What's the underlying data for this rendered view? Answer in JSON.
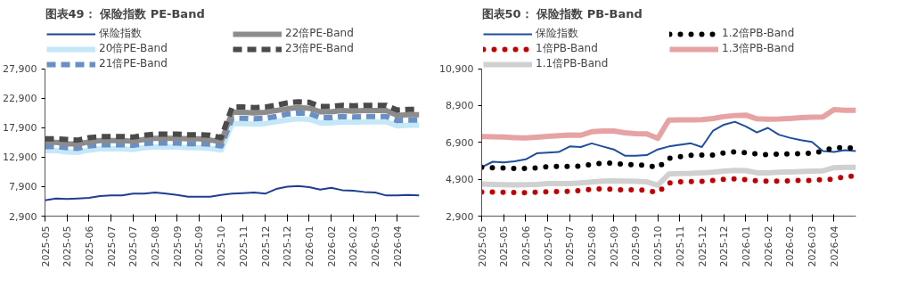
{
  "chart_data": [
    {
      "type": "line",
      "title": "图表49： 保险指数 PE-Band",
      "categories": [
        "2025-05",
        null,
        "2025-05",
        null,
        "2025-06",
        null,
        "2025-07",
        null,
        "2025-07",
        null,
        "2025-08",
        null,
        "2025-09",
        null,
        "2025-09",
        null,
        "2025-10",
        null,
        "2025-11",
        null,
        "2025-12",
        null,
        "2025-12",
        null,
        "2026-01",
        null,
        "2026-02",
        null,
        "2026-02",
        null,
        "2026-03",
        null,
        "2026-04",
        null,
        null
      ],
      "ylim": [
        2900,
        27900
      ],
      "yticks": [
        {
          "value": 2900,
          "label": "2,900"
        },
        {
          "value": 7900,
          "label": "7,900"
        },
        {
          "value": 12900,
          "label": "12,900"
        },
        {
          "value": 17900,
          "label": "17,900"
        },
        {
          "value": 22900,
          "label": "22,900"
        },
        {
          "value": 27900,
          "label": "27,900"
        }
      ],
      "grid": false,
      "legend": "top",
      "series": [
        {
          "name": "保险指数",
          "color": "#1f3f8f",
          "line_style": "solid",
          "values": [
            5600,
            5900,
            5800,
            5900,
            6000,
            6300,
            6400,
            6400,
            6700,
            6700,
            6900,
            6700,
            6500,
            6200,
            6200,
            6200,
            6500,
            6700,
            6800,
            6900,
            6700,
            7500,
            7900,
            8000,
            7800,
            7400,
            7700,
            7300,
            7200,
            7000,
            6900,
            6400,
            6400,
            6500,
            6400
          ]
        },
        {
          "name": "20倍PE-Band",
          "color": "#c4e8f8",
          "line_style": "solid",
          "values": [
            14000,
            14000,
            13800,
            13700,
            14100,
            14300,
            14300,
            14300,
            14200,
            14500,
            14600,
            14600,
            14600,
            14500,
            14500,
            14400,
            14100,
            18600,
            18600,
            18500,
            18600,
            18900,
            19200,
            19400,
            19300,
            18700,
            18700,
            18900,
            18800,
            18900,
            18900,
            18900,
            18200,
            18300,
            18300
          ]
        },
        {
          "name": "21倍PE-Band",
          "color": "#6a8fc4",
          "line_style": "dashed",
          "values": [
            14700,
            14700,
            14500,
            14400,
            14800,
            15000,
            15000,
            15000,
            14900,
            15200,
            15300,
            15300,
            15300,
            15200,
            15200,
            15100,
            14800,
            19500,
            19500,
            19400,
            19500,
            19800,
            20200,
            20400,
            20300,
            19600,
            19600,
            19800,
            19700,
            19800,
            19800,
            19800,
            19100,
            19200,
            19200
          ]
        },
        {
          "name": "22倍PE-Band",
          "color": "#8c8c8c",
          "line_style": "solid",
          "values": [
            15400,
            15400,
            15200,
            15100,
            15500,
            15700,
            15700,
            15700,
            15600,
            15900,
            16100,
            16100,
            16100,
            16000,
            16000,
            15800,
            15500,
            20500,
            20500,
            20400,
            20500,
            20800,
            21100,
            21300,
            21200,
            20600,
            20600,
            20800,
            20700,
            20800,
            20800,
            20800,
            20000,
            20100,
            20100
          ]
        },
        {
          "name": "23倍PE-Band",
          "color": "#4a4a4a",
          "line_style": "dashed",
          "values": [
            16000,
            16000,
            15900,
            15800,
            16200,
            16400,
            16400,
            16400,
            16300,
            16600,
            16800,
            16800,
            16800,
            16700,
            16700,
            16600,
            16200,
            21400,
            21400,
            21300,
            21400,
            21700,
            22100,
            22300,
            22200,
            21500,
            21500,
            21700,
            21600,
            21700,
            21700,
            21700,
            20900,
            21000,
            21000
          ]
        }
      ]
    },
    {
      "type": "line",
      "title": "图表50： 保险指数 PB-Band",
      "categories": [
        "2025-05",
        null,
        "2025-05",
        null,
        "2025-06",
        null,
        "2025-07",
        null,
        "2025-07",
        null,
        "2025-08",
        null,
        "2025-09",
        null,
        "2025-09",
        null,
        "2025-10",
        null,
        "2025-11",
        null,
        "2025-12",
        null,
        "2025-12",
        null,
        "2026-01",
        null,
        "2026-02",
        null,
        "2026-02",
        null,
        "2026-03",
        null,
        "2026-04",
        null,
        null
      ],
      "ylim": [
        2900,
        10900
      ],
      "yticks": [
        {
          "value": 2900,
          "label": "2,900"
        },
        {
          "value": 4900,
          "label": "4,900"
        },
        {
          "value": 6900,
          "label": "6,900"
        },
        {
          "value": 8900,
          "label": "8,900"
        },
        {
          "value": 10900,
          "label": "10,900"
        }
      ],
      "grid": false,
      "legend": "top",
      "series": [
        {
          "name": "保险指数",
          "color": "#1f4e9c",
          "line_style": "solid",
          "values": [
            5550,
            5850,
            5810,
            5880,
            5980,
            6310,
            6350,
            6380,
            6680,
            6650,
            6850,
            6680,
            6520,
            6180,
            6180,
            6210,
            6520,
            6680,
            6770,
            6850,
            6650,
            7520,
            7860,
            8020,
            7770,
            7440,
            7690,
            7320,
            7150,
            7020,
            6930,
            6430,
            6380,
            6480,
            6430
          ]
        },
        {
          "name": "1倍PB-Band",
          "color": "#c00000",
          "line_style": "dotted",
          "values": [
            4210,
            4200,
            4200,
            4180,
            4170,
            4200,
            4220,
            4240,
            4240,
            4300,
            4360,
            4380,
            4350,
            4320,
            4330,
            4300,
            4170,
            4700,
            4760,
            4780,
            4790,
            4830,
            4900,
            4920,
            4880,
            4820,
            4790,
            4800,
            4820,
            4840,
            4840,
            4880,
            4900,
            5060,
            5060
          ]
        },
        {
          "name": "1.1倍PB-Band",
          "color": "#d0d0d0",
          "line_style": "solid",
          "values": [
            4640,
            4620,
            4600,
            4590,
            4610,
            4620,
            4660,
            4670,
            4660,
            4700,
            4750,
            4800,
            4810,
            4800,
            4790,
            4760,
            4580,
            5180,
            5210,
            5220,
            5250,
            5280,
            5340,
            5380,
            5370,
            5250,
            5250,
            5280,
            5300,
            5320,
            5340,
            5360,
            5530,
            5550,
            5550
          ]
        },
        {
          "name": "1.2倍PB-Band",
          "color": "#000000",
          "line_style": "dotted",
          "values": [
            5550,
            5520,
            5510,
            5480,
            5490,
            5520,
            5580,
            5600,
            5590,
            5620,
            5700,
            5790,
            5780,
            5700,
            5680,
            5660,
            5520,
            6030,
            6130,
            6200,
            6210,
            6210,
            6330,
            6390,
            6340,
            6270,
            6230,
            6280,
            6270,
            6300,
            6310,
            6430,
            6620,
            6600,
            6600
          ]
        },
        {
          "name": "1.3倍PB-Band",
          "color": "#e6a3a3",
          "line_style": "solid",
          "values": [
            7220,
            7200,
            7190,
            7160,
            7140,
            7180,
            7230,
            7270,
            7300,
            7290,
            7480,
            7520,
            7520,
            7420,
            7380,
            7360,
            7120,
            8110,
            8120,
            8130,
            8140,
            8200,
            8300,
            8360,
            8380,
            8180,
            8160,
            8170,
            8200,
            8240,
            8270,
            8280,
            8680,
            8650,
            8650
          ]
        }
      ]
    }
  ]
}
